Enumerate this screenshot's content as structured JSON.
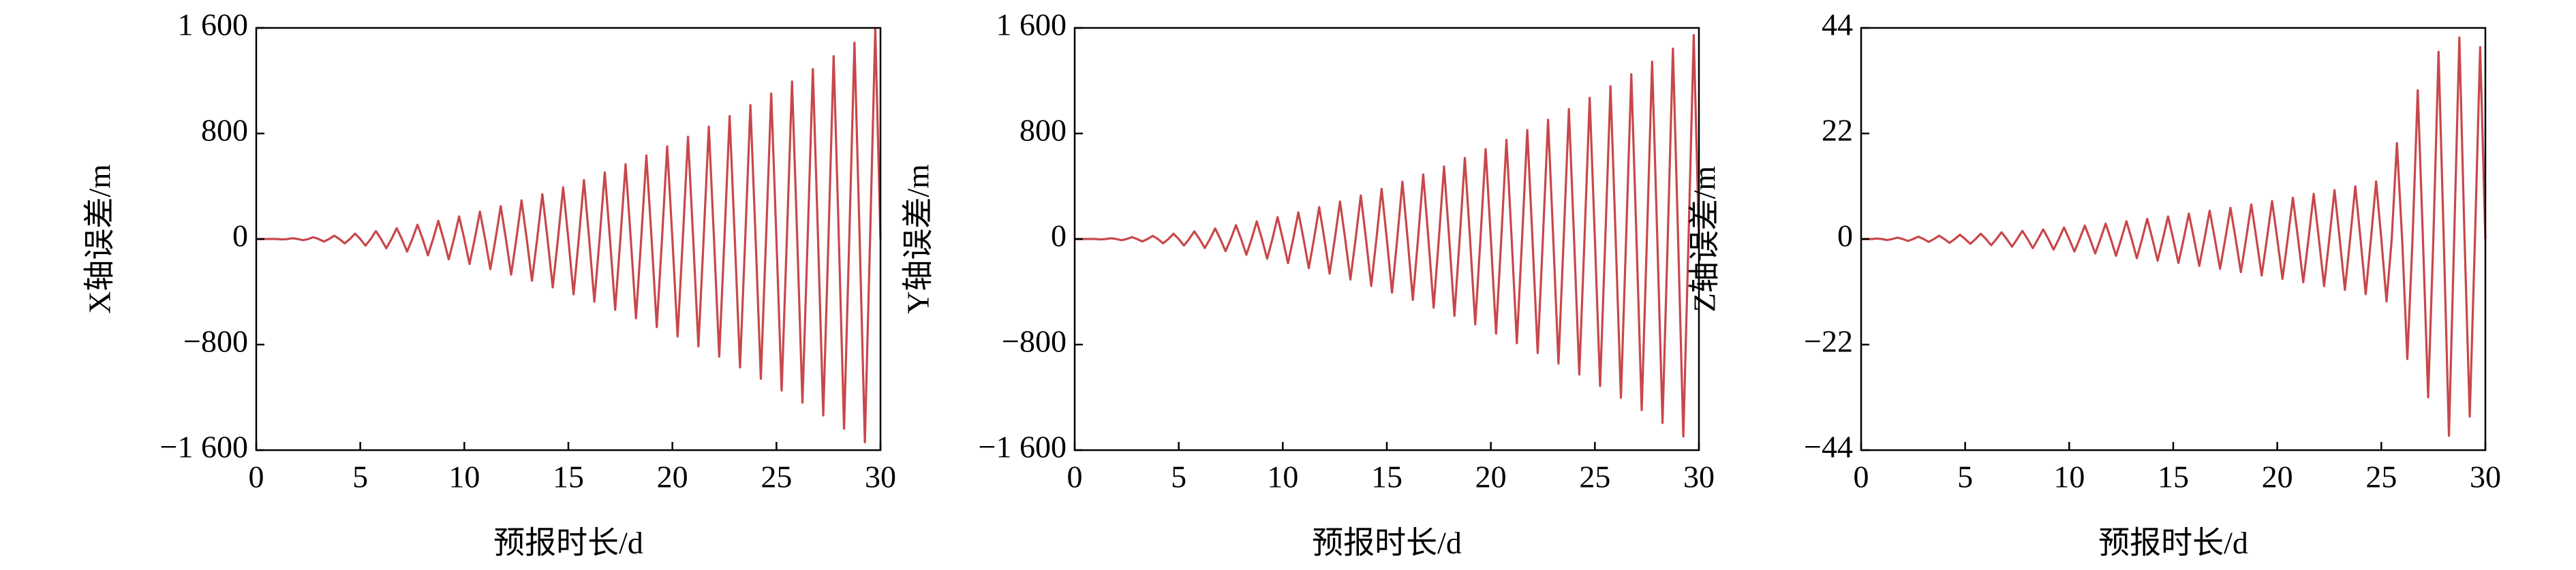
{
  "chart_data": [
    {
      "type": "line",
      "xlabel": "预报时长/d",
      "ylabel": "X轴误差/m",
      "color": "#c8474b",
      "xlim": [
        0,
        30
      ],
      "xticks": [
        0,
        5,
        10,
        15,
        20,
        25,
        30
      ],
      "ylim": [
        -1600,
        1600
      ],
      "yticks": [
        {
          "value": -1600,
          "label": "−1 600"
        },
        {
          "value": -800,
          "label": "−800"
        },
        0,
        800,
        {
          "value": 1600,
          "label": "1 600"
        }
      ],
      "x": [
        0,
        0.25,
        0.5,
        0.75,
        1,
        1.25,
        1.5,
        1.75,
        2,
        2.25,
        2.5,
        2.75,
        3,
        3.25,
        3.5,
        3.75,
        4,
        4.25,
        4.5,
        4.75,
        5,
        5.25,
        5.5,
        5.75,
        6,
        6.25,
        6.5,
        6.75,
        7,
        7.25,
        7.5,
        7.75,
        8,
        8.25,
        8.5,
        8.75,
        9,
        9.25,
        9.5,
        9.75,
        10,
        10.25,
        10.5,
        10.75,
        11,
        11.25,
        11.5,
        11.75,
        12,
        12.25,
        12.5,
        12.75,
        13,
        13.25,
        13.5,
        13.75,
        14,
        14.25,
        14.5,
        14.75,
        15,
        15.25,
        15.5,
        15.75,
        16,
        16.25,
        16.5,
        16.75,
        17,
        17.25,
        17.5,
        17.75,
        18,
        18.25,
        18.5,
        18.75,
        19,
        19.25,
        19.5,
        19.75,
        20,
        20.25,
        20.5,
        20.75,
        21,
        21.25,
        21.5,
        21.75,
        22,
        22.25,
        22.5,
        22.75,
        23,
        23.25,
        23.5,
        23.75,
        24,
        24.25,
        24.5,
        24.75,
        25,
        25.25,
        25.5,
        25.75,
        26,
        26.25,
        26.5,
        26.75,
        27,
        27.25,
        27.5,
        27.75,
        28,
        28.25,
        28.5,
        28.75,
        29,
        29.25,
        29.5,
        29.75,
        30
      ],
      "values": [
        0,
        0,
        0,
        1,
        0,
        -3,
        0,
        6,
        0,
        -9,
        0,
        14,
        0,
        -19,
        0,
        25,
        0,
        -33,
        0,
        41,
        0,
        -50,
        0,
        60,
        0,
        -70,
        0,
        82,
        0,
        -95,
        0,
        108,
        0,
        -123,
        0,
        138,
        0,
        -154,
        0,
        171,
        0,
        -189,
        0,
        208,
        0,
        -228,
        0,
        249,
        0,
        -270,
        0,
        293,
        0,
        -316,
        0,
        340,
        0,
        -366,
        0,
        392,
        0,
        -419,
        0,
        447,
        0,
        -475,
        0,
        505,
        0,
        -536,
        0,
        567,
        0,
        -600,
        0,
        633,
        0,
        -667,
        0,
        702,
        0,
        -738,
        0,
        775,
        0,
        -813,
        0,
        852,
        0,
        -891,
        0,
        932,
        0,
        -973,
        0,
        1015,
        0,
        -1059,
        0,
        1103,
        0,
        -1148,
        0,
        1194,
        0,
        -1240,
        0,
        1288,
        0,
        -1337,
        0,
        1386,
        0,
        -1437,
        0,
        1488,
        0,
        -1540,
        0,
        1593,
        0
      ]
    },
    {
      "type": "line",
      "xlabel": "预报时长/d",
      "ylabel": "Y轴误差/m",
      "color": "#c8474b",
      "xlim": [
        0,
        30
      ],
      "xticks": [
        0,
        5,
        10,
        15,
        20,
        25,
        30
      ],
      "ylim": [
        -1600,
        1600
      ],
      "yticks": [
        {
          "value": -1600,
          "label": "−1 600"
        },
        {
          "value": -800,
          "label": "−800"
        },
        0,
        800,
        {
          "value": 1600,
          "label": "1 600"
        }
      ],
      "x": [
        0,
        0.25,
        0.5,
        0.75,
        1,
        1.25,
        1.5,
        1.75,
        2,
        2.25,
        2.5,
        2.75,
        3,
        3.25,
        3.5,
        3.75,
        4,
        4.25,
        4.5,
        4.75,
        5,
        5.25,
        5.5,
        5.75,
        6,
        6.25,
        6.5,
        6.75,
        7,
        7.25,
        7.5,
        7.75,
        8,
        8.25,
        8.5,
        8.75,
        9,
        9.25,
        9.5,
        9.75,
        10,
        10.25,
        10.5,
        10.75,
        11,
        11.25,
        11.5,
        11.75,
        12,
        12.25,
        12.5,
        12.75,
        13,
        13.25,
        13.5,
        13.75,
        14,
        14.25,
        14.5,
        14.75,
        15,
        15.25,
        15.5,
        15.75,
        16,
        16.25,
        16.5,
        16.75,
        17,
        17.25,
        17.5,
        17.75,
        18,
        18.25,
        18.5,
        18.75,
        19,
        19.25,
        19.5,
        19.75,
        20,
        20.25,
        20.5,
        20.75,
        21,
        21.25,
        21.5,
        21.75,
        22,
        22.25,
        22.5,
        22.75,
        23,
        23.25,
        23.5,
        23.75,
        24,
        24.25,
        24.5,
        24.75,
        25,
        25.25,
        25.5,
        25.75,
        26,
        26.25,
        26.5,
        26.75,
        27,
        27.25,
        27.5,
        27.75,
        28,
        28.25,
        28.5,
        28.75,
        29,
        29.25,
        29.5,
        29.75,
        30
      ],
      "values": [
        0,
        0,
        0,
        1,
        0,
        -3,
        0,
        6,
        0,
        -9,
        0,
        14,
        0,
        -18,
        0,
        24,
        0,
        -32,
        0,
        40,
        0,
        -49,
        0,
        58,
        0,
        -68,
        0,
        80,
        0,
        -92,
        0,
        105,
        0,
        -119,
        0,
        134,
        0,
        -149,
        0,
        166,
        0,
        -183,
        0,
        202,
        0,
        -221,
        0,
        242,
        0,
        -262,
        0,
        284,
        0,
        -307,
        0,
        330,
        0,
        -355,
        0,
        380,
        0,
        -406,
        0,
        434,
        0,
        -461,
        0,
        490,
        0,
        -520,
        0,
        550,
        0,
        -582,
        0,
        614,
        0,
        -647,
        0,
        681,
        0,
        -716,
        0,
        752,
        0,
        -789,
        0,
        826,
        0,
        -864,
        0,
        904,
        0,
        -944,
        0,
        985,
        0,
        -1027,
        0,
        1070,
        0,
        -1114,
        0,
        1158,
        0,
        -1203,
        0,
        1249,
        0,
        -1297,
        0,
        1344,
        0,
        -1394,
        0,
        1443,
        0,
        -1496,
        0,
        1545,
        0
      ]
    },
    {
      "type": "line",
      "xlabel": "预报时长/d",
      "ylabel": "Z轴误差/m",
      "color": "#c8474b",
      "xlim": [
        0,
        30
      ],
      "xticks": [
        0,
        5,
        10,
        15,
        20,
        25,
        30
      ],
      "ylim": [
        -44,
        44
      ],
      "yticks": [
        {
          "value": -44,
          "label": "−44"
        },
        {
          "value": -22,
          "label": "−22"
        },
        0,
        22,
        44
      ],
      "x": [
        0,
        0.25,
        0.5,
        0.75,
        1,
        1.25,
        1.5,
        1.75,
        2,
        2.25,
        2.5,
        2.75,
        3,
        3.25,
        3.5,
        3.75,
        4,
        4.25,
        4.5,
        4.75,
        5,
        5.25,
        5.5,
        5.75,
        6,
        6.25,
        6.5,
        6.75,
        7,
        7.25,
        7.5,
        7.75,
        8,
        8.25,
        8.5,
        8.75,
        9,
        9.25,
        9.5,
        9.75,
        10,
        10.25,
        10.5,
        10.75,
        11,
        11.25,
        11.5,
        11.75,
        12,
        12.25,
        12.5,
        12.75,
        13,
        13.25,
        13.5,
        13.75,
        14,
        14.25,
        14.5,
        14.75,
        15,
        15.25,
        15.5,
        15.75,
        16,
        16.25,
        16.5,
        16.75,
        17,
        17.25,
        17.5,
        17.75,
        18,
        18.25,
        18.5,
        18.75,
        19,
        19.25,
        19.5,
        19.75,
        20,
        20.25,
        20.5,
        20.75,
        21,
        21.25,
        21.5,
        21.75,
        22,
        22.25,
        22.5,
        22.75,
        23,
        23.25,
        23.5,
        23.75,
        24,
        24.25,
        24.5,
        24.75,
        25,
        25.25,
        25.5,
        25.75,
        26,
        26.25,
        26.5,
        26.75,
        27,
        27.25,
        27.5,
        27.75,
        28,
        28.25,
        28.5,
        28.75,
        29,
        29.25,
        29.5,
        29.75,
        30
      ],
      "values": [
        0,
        0,
        0,
        0.1,
        0,
        -0.2,
        0,
        0.3,
        0,
        -0.4,
        0,
        0.5,
        0,
        -0.6,
        0,
        0.7,
        0,
        -0.8,
        0,
        0.9,
        0,
        -1,
        0,
        1.1,
        0,
        -1.3,
        0,
        1.4,
        0,
        -1.6,
        0,
        1.7,
        0,
        -1.9,
        0,
        2,
        0,
        -2.2,
        0,
        2.4,
        0,
        -2.6,
        0,
        2.8,
        0,
        -3,
        0,
        3.2,
        0,
        -3.5,
        0,
        3.7,
        0,
        -4,
        0,
        4.2,
        0,
        -4.5,
        0,
        4.7,
        0,
        -5,
        0,
        5.3,
        0,
        -5.6,
        0,
        5.9,
        0,
        -6.2,
        0,
        6.5,
        0,
        -6.9,
        0,
        7.2,
        0,
        -7.6,
        0,
        7.9,
        0,
        -8.3,
        0,
        8.6,
        0,
        -9,
        0,
        9.4,
        0,
        -9.8,
        0,
        10.2,
        0,
        -10.6,
        0,
        11,
        0,
        -11.5,
        0,
        12,
        0,
        -13,
        0,
        20,
        0,
        -25,
        0,
        31,
        0,
        -33,
        0,
        39,
        0,
        -41,
        0,
        42,
        0,
        -37,
        0,
        40,
        0
      ]
    }
  ]
}
